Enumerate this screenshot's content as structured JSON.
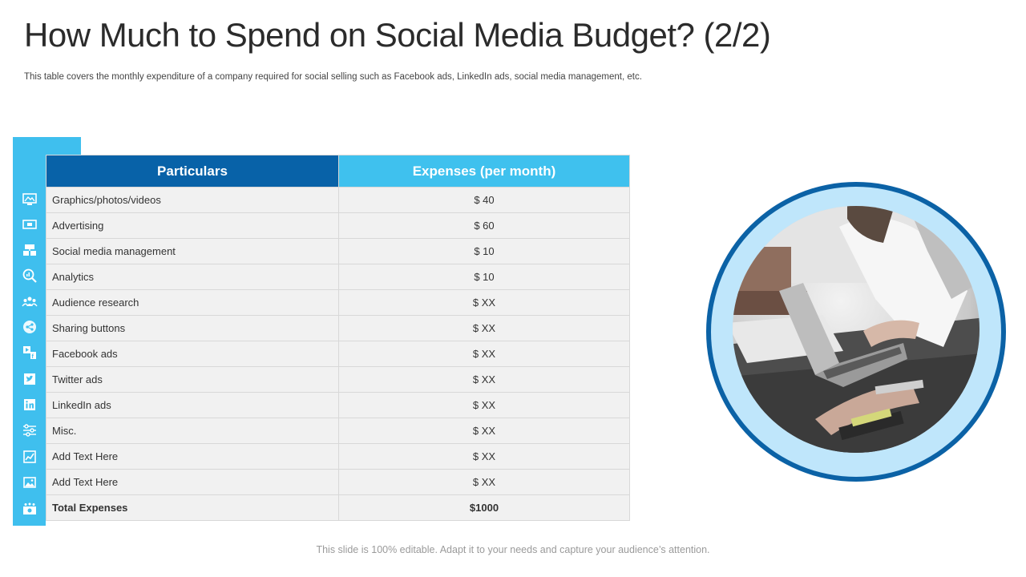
{
  "slide": {
    "title": "How Much to Spend on Social Media Budget? (2/2)",
    "subtitle": "This table covers the monthly expenditure of a company required for social selling such as Facebook ads, LinkedIn ads, social media management, etc.",
    "footer": "This slide is 100% editable. Adapt it to your needs and capture your audience’s attention."
  },
  "table": {
    "headers": {
      "particulars": "Particulars",
      "expenses": "Expenses (per month)"
    },
    "rows": [
      {
        "particular": "Graphics/photos/videos",
        "expense": "$ 40",
        "icon": "graphics-icon"
      },
      {
        "particular": "Advertising",
        "expense": "$ 60",
        "icon": "advertising-icon"
      },
      {
        "particular": "Social media management",
        "expense": "$ 10",
        "icon": "social-management-icon"
      },
      {
        "particular": "Analytics",
        "expense": "$ 10",
        "icon": "analytics-icon"
      },
      {
        "particular": "Audience research",
        "expense": "$ XX",
        "icon": "audience-icon"
      },
      {
        "particular": "Sharing buttons",
        "expense": "$ XX",
        "icon": "share-icon"
      },
      {
        "particular": "Facebook ads",
        "expense": "$ XX",
        "icon": "facebook-ads-icon"
      },
      {
        "particular": "Twitter ads",
        "expense": "$ XX",
        "icon": "twitter-icon"
      },
      {
        "particular": "LinkedIn ads",
        "expense": "$ XX",
        "icon": "linkedin-icon"
      },
      {
        "particular": "Misc.",
        "expense": "$ XX",
        "icon": "sliders-icon"
      },
      {
        "particular": "Add Text Here",
        "expense": "$ XX",
        "icon": "chart-icon"
      },
      {
        "particular": "Add Text Here",
        "expense": "$ XX",
        "icon": "image-icon"
      }
    ],
    "total": {
      "label": "Total Expenses",
      "value": "$1000",
      "icon": "money-icon"
    }
  },
  "colors": {
    "header_dark": "#0862a8",
    "header_light": "#3fc1ee",
    "icon_bar": "#3fbfee",
    "row_bg": "#f1f1f1",
    "total_bg": "#d9f3fd",
    "circle_ring": "#0b62a6",
    "circle_fill": "#bfe6fb"
  }
}
